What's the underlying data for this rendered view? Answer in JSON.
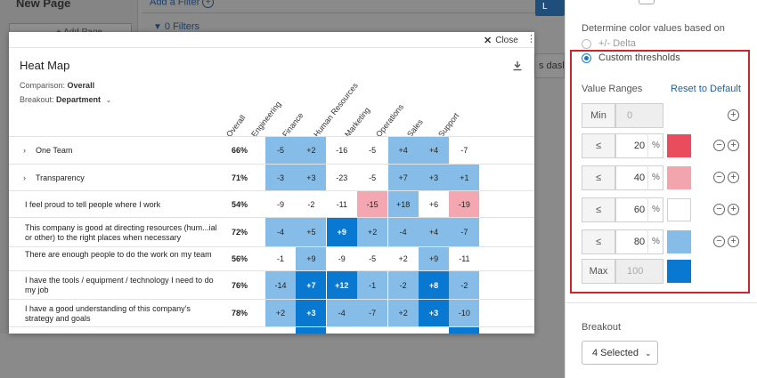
{
  "background": {
    "page_title": "New Page",
    "add_page": "+ Add Page",
    "add_filter": "Add a Filter",
    "filters": "0 Filters",
    "dash_text": "s dash",
    "primary_button": "L"
  },
  "modal": {
    "close_label": "Close",
    "title": "Heat Map",
    "comparison_label": "Comparison:",
    "comparison_value": "Overall",
    "breakout_label": "Breakout:",
    "breakout_value": "Department",
    "columns": [
      "Overall",
      "Engineering",
      "Finance",
      "Human Resources",
      "Marketing",
      "Operations",
      "Sales",
      "Support"
    ],
    "rows": [
      {
        "label": "One Team",
        "expandable": true,
        "overall": "66%",
        "cells": [
          "-5",
          "+2",
          "-16",
          "-5",
          "+4",
          "+4",
          "-7"
        ]
      },
      {
        "label": "Transparency",
        "expandable": true,
        "overall": "71%",
        "cells": [
          "-3",
          "+3",
          "-23",
          "-5",
          "+7",
          "+3",
          "+1"
        ]
      },
      {
        "label": "I feel proud to tell people where I work",
        "expandable": false,
        "overall": "54%",
        "cells": [
          "-9",
          "-2",
          "-11",
          "-15",
          "+18",
          "+6",
          "-19"
        ]
      },
      {
        "label": "This company is good at directing resources (hum...ial or other) to the right places when necessary",
        "expandable": false,
        "overall": "72%",
        "cells": [
          "-4",
          "+5",
          "+9",
          "+2",
          "-4",
          "+4",
          "-7"
        ]
      },
      {
        "label": "There are enough people to do the work on my team",
        "expandable": false,
        "overall": "56%",
        "cells": [
          "-1",
          "+9",
          "-9",
          "-5",
          "+2",
          "+9",
          "-11"
        ]
      },
      {
        "label": "I have the tools / equipment / technology I need to do my job",
        "expandable": false,
        "overall": "76%",
        "cells": [
          "-14",
          "+7",
          "+12",
          "-1",
          "-2",
          "+8",
          "-2"
        ]
      },
      {
        "label": "I have a good understanding of this company's strategy and goals",
        "expandable": false,
        "overall": "78%",
        "cells": [
          "+2",
          "+3",
          "-4",
          "-7",
          "+2",
          "+3",
          "-10"
        ]
      }
    ],
    "cell_levels": [
      [
        3,
        3,
        2,
        2,
        3,
        3,
        2
      ],
      [
        3,
        3,
        2,
        2,
        3,
        3,
        3
      ],
      [
        2,
        2,
        2,
        1,
        3,
        2,
        1
      ],
      [
        3,
        3,
        4,
        3,
        3,
        3,
        3
      ],
      [
        2,
        3,
        2,
        2,
        2,
        3,
        2
      ],
      [
        3,
        4,
        4,
        3,
        3,
        4,
        3
      ],
      [
        3,
        4,
        3,
        3,
        3,
        4,
        3
      ]
    ],
    "partial_row_levels": [
      2,
      4,
      2,
      2,
      2,
      2,
      4
    ]
  },
  "panel": {
    "heading": "Determine color values based on",
    "option_delta": "+/- Delta",
    "option_custom": "Custom thresholds",
    "value_ranges_label": "Value Ranges",
    "reset_label": "Reset to Default",
    "ranges": [
      {
        "label": "Min",
        "value": "0",
        "color": "",
        "editable": false
      },
      {
        "label": "≤",
        "value": "20",
        "color": "#e94c5d",
        "editable": true
      },
      {
        "label": "≤",
        "value": "40",
        "color": "#f2a5ad",
        "editable": true
      },
      {
        "label": "≤",
        "value": "60",
        "color": "#ffffff",
        "editable": true
      },
      {
        "label": "≤",
        "value": "80",
        "color": "#85bde8",
        "editable": true
      },
      {
        "label": "Max",
        "value": "100",
        "color": "#0878d0",
        "editable": false
      }
    ],
    "percent_symbol": "%",
    "breakout_label": "Breakout",
    "breakout_value": "4 Selected"
  },
  "colors": {
    "level_1": "#f4a7b0",
    "level_2": "#ffffff",
    "level_3": "#85bde8",
    "level_4": "#0878d0",
    "highlight_border": "#c0282d"
  },
  "icons": [
    "close-icon",
    "kebab-menu-icon",
    "download-icon",
    "chevron-down-icon",
    "chevron-right-icon",
    "add-circle-icon",
    "remove-circle-icon",
    "funnel-icon"
  ]
}
